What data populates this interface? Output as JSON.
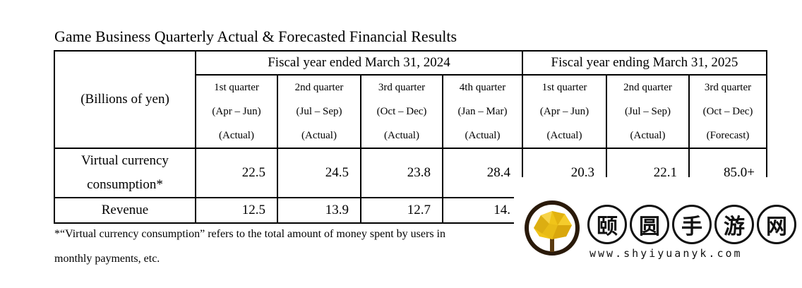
{
  "title": "Game Business Quarterly Actual & Forecasted Financial Results",
  "table": {
    "unit_label": "(Billions of yen)",
    "fiscal_years": [
      "Fiscal year ended March 31, 2024",
      "Fiscal year ending March 31, 2025"
    ],
    "quarters": [
      {
        "name": "1st quarter",
        "period": "(Apr – Jun)",
        "status": "(Actual)"
      },
      {
        "name": "2nd quarter",
        "period": "(Jul – Sep)",
        "status": "(Actual)"
      },
      {
        "name": "3rd quarter",
        "period": "(Oct – Dec)",
        "status": "(Actual)"
      },
      {
        "name": "4th quarter",
        "period": "(Jan – Mar)",
        "status": "(Actual)"
      },
      {
        "name": "1st quarter",
        "period": "(Apr – Jun)",
        "status": "(Actual)"
      },
      {
        "name": "2nd quarter",
        "period": "(Jul – Sep)",
        "status": "(Actual)"
      },
      {
        "name": "3rd quarter",
        "period": "(Oct – Dec)",
        "status": "(Forecast)"
      }
    ],
    "rows": [
      {
        "label_line1": "Virtual currency",
        "label_line2": "consumption*",
        "values": [
          "22.5",
          "24.5",
          "23.8",
          "28.4",
          "20.3",
          "22.1",
          "85.0+"
        ]
      },
      {
        "label_line1": "Revenue",
        "values": [
          "12.5",
          "13.9",
          "12.7",
          "14."
        ]
      }
    ]
  },
  "footnote": {
    "line1": "*“Virtual currency consumption” refers to the total amount of money spent by users in",
    "line2": "monthly payments, etc."
  },
  "watermark": {
    "characters": [
      "颐",
      "圆",
      "手",
      "游",
      "网"
    ],
    "url": "www.shyiyuanyk.com"
  }
}
